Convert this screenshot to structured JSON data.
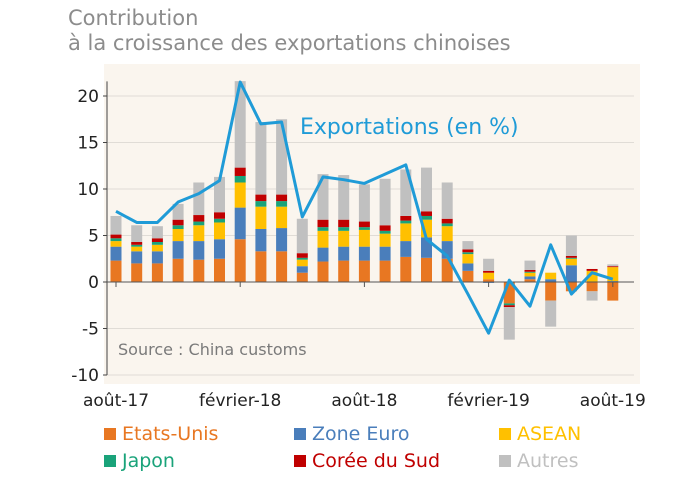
{
  "title": {
    "line1": "Contribution",
    "line2": "à la croissance des exportations chinoises"
  },
  "colors": {
    "plot_background": "#faf5ee",
    "line": "#1f9bd7",
    "grid": "#e0dcd6"
  },
  "chart_data": {
    "type": "bar",
    "subtype": "stacked bar with line overlay",
    "ylim": [
      -10,
      22
    ],
    "yticks": [
      20,
      15,
      10,
      5,
      0,
      -5,
      -10
    ],
    "grid": true,
    "xticklabels": [
      {
        "label": "août-17",
        "index": 0
      },
      {
        "label": "février-18",
        "index": 6
      },
      {
        "label": "août-18",
        "index": 12
      },
      {
        "label": "février-19",
        "index": 18
      },
      {
        "label": "août-19",
        "index": 24
      }
    ],
    "months": [
      "2017-08",
      "2017-09",
      "2017-10",
      "2017-11",
      "2017-12",
      "2018-01",
      "2018-02",
      "2018-03",
      "2018-04",
      "2018-05",
      "2018-06",
      "2018-07",
      "2018-08",
      "2018-09",
      "2018-10",
      "2018-11",
      "2018-12",
      "2019-01",
      "2019-02",
      "2019-03",
      "2019-04",
      "2019-05",
      "2019-06",
      "2019-07",
      "2019-08"
    ],
    "series": [
      {
        "name": "Etats-Unis",
        "color": "#e87722",
        "values": [
          2.3,
          2.0,
          2.0,
          2.5,
          2.4,
          2.5,
          4.6,
          3.3,
          3.3,
          1.0,
          2.2,
          2.3,
          2.3,
          2.3,
          2.7,
          2.6,
          2.5,
          1.2,
          0.3,
          -2.3,
          0.3,
          -2.0,
          -1.0,
          -1.0,
          -2.0
        ]
      },
      {
        "name": "Zone Euro",
        "color": "#4a7ebb",
        "values": [
          1.5,
          1.3,
          1.3,
          1.9,
          2.0,
          2.1,
          3.4,
          2.4,
          2.5,
          0.7,
          1.5,
          1.5,
          1.5,
          1.5,
          1.7,
          2.2,
          1.9,
          0.8,
          -0.1,
          0.0,
          0.3,
          0.3,
          1.8,
          0.0,
          0.1
        ]
      },
      {
        "name": "ASEAN",
        "color": "#ffc000",
        "values": [
          0.6,
          0.5,
          0.7,
          1.3,
          1.7,
          1.8,
          2.7,
          2.4,
          2.3,
          0.7,
          1.8,
          1.7,
          1.8,
          1.4,
          1.9,
          1.9,
          1.6,
          1.0,
          0.7,
          0.0,
          0.4,
          0.7,
          0.7,
          1.2,
          1.5
        ]
      },
      {
        "name": "Japon",
        "color": "#1aa37a",
        "values": [
          0.3,
          0.2,
          0.3,
          0.4,
          0.4,
          0.4,
          0.7,
          0.6,
          0.6,
          0.2,
          0.4,
          0.4,
          0.3,
          0.3,
          0.3,
          0.4,
          0.3,
          0.2,
          0.0,
          -0.2,
          0.1,
          0.0,
          0.1,
          0.0,
          0.0
        ]
      },
      {
        "name": "Corée du Sud",
        "color": "#c00000",
        "values": [
          0.4,
          0.3,
          0.4,
          0.6,
          0.7,
          0.7,
          0.9,
          0.7,
          0.7,
          0.5,
          0.8,
          0.8,
          0.6,
          0.6,
          0.5,
          0.5,
          0.5,
          0.3,
          0.2,
          -0.2,
          0.2,
          0.0,
          0.2,
          0.2,
          0.1
        ]
      },
      {
        "name": "Autres",
        "color": "#c0c0c0",
        "values": [
          2.0,
          1.8,
          1.3,
          1.7,
          3.5,
          3.8,
          9.3,
          7.8,
          8.1,
          3.7,
          4.9,
          4.8,
          4.0,
          5.0,
          5.0,
          4.7,
          3.9,
          0.9,
          1.3,
          -3.5,
          1.0,
          -2.8,
          2.2,
          -1.0,
          0.2
        ]
      }
    ],
    "line": {
      "name": "Exportations (en %)",
      "values": [
        7.6,
        6.4,
        6.4,
        8.6,
        9.5,
        10.9,
        21.5,
        17.0,
        17.2,
        7.0,
        11.3,
        11.0,
        10.6,
        11.6,
        12.6,
        4.6,
        2.8,
        -1.3,
        -5.5,
        0.2,
        -2.6,
        4.0,
        -1.3,
        1.0,
        0.3
      ]
    },
    "annotations": {
      "line_label": "Exportations (en %)",
      "source": "Source : China customs"
    }
  }
}
